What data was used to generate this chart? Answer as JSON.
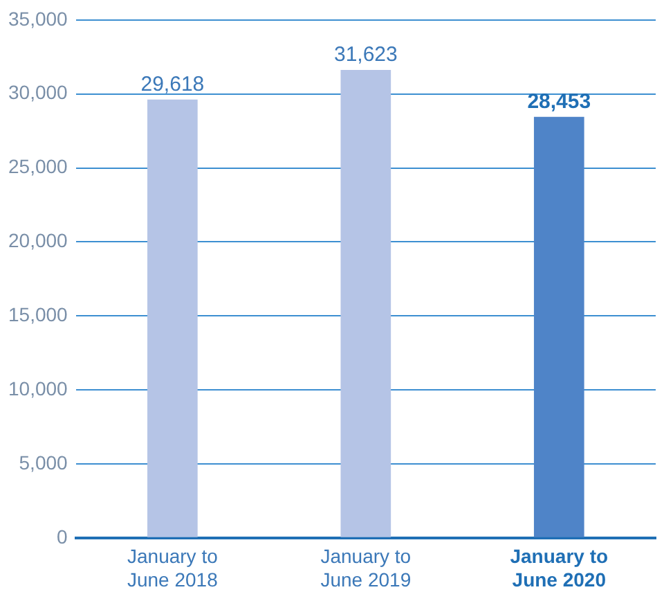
{
  "chart_data": {
    "type": "bar",
    "categories": [
      "January to June 2018",
      "January to June 2019",
      "January to June 2020"
    ],
    "values": [
      29618,
      31623,
      28453
    ],
    "colors": [
      "#b5c4e6",
      "#b5c4e6",
      "#4f84c8"
    ],
    "value_labels": [
      "29,618",
      "31,623",
      "28,453"
    ],
    "ylim": [
      0,
      35000
    ],
    "yticks": [
      {
        "value": 0,
        "label": "0"
      },
      {
        "value": 5000,
        "label": "5,000"
      },
      {
        "value": 10000,
        "label": "10,000"
      },
      {
        "value": 15000,
        "label": "15,000"
      },
      {
        "value": 20000,
        "label": "20,000"
      },
      {
        "value": 25000,
        "label": "25,000"
      },
      {
        "value": 30000,
        "label": "30,000"
      },
      {
        "value": 35000,
        "label": "35,000"
      }
    ],
    "grid": "y"
  }
}
